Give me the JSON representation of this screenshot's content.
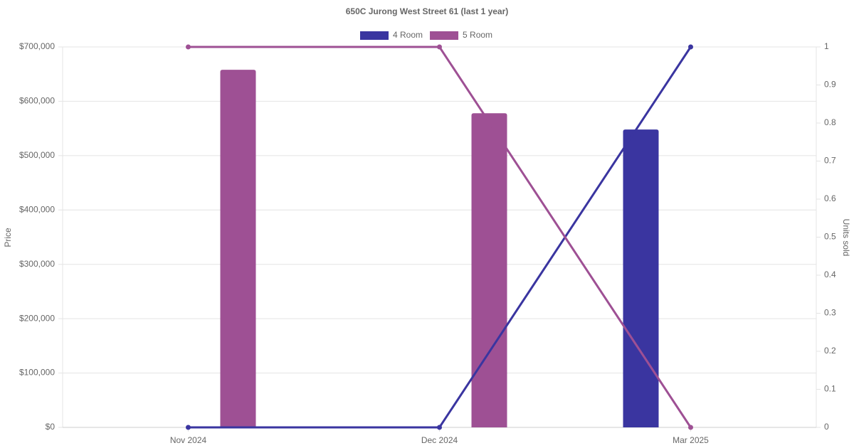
{
  "chart_data": {
    "type": "bar-line",
    "title": "650C Jurong West Street 61 (last 1 year)",
    "y_label": "Price",
    "y2_label": "Units sold",
    "categories": [
      "Nov 2024",
      "Dec 2024",
      "Mar 2025"
    ],
    "series": [
      {
        "name": "4 Room",
        "color": "#3a35a0",
        "values": [
          null,
          null,
          548000
        ],
        "units": [
          0,
          0,
          1
        ]
      },
      {
        "name": "5 Room",
        "color": "#9e5094",
        "values": [
          658000,
          578000,
          null
        ],
        "units": [
          1,
          1,
          0
        ]
      }
    ],
    "ylim": [
      0,
      700000
    ],
    "yticks": [
      {
        "value": 0,
        "label": "$0"
      },
      {
        "value": 100000,
        "label": "$100,000"
      },
      {
        "value": 200000,
        "label": "$200,000"
      },
      {
        "value": 300000,
        "label": "$300,000"
      },
      {
        "value": 400000,
        "label": "$400,000"
      },
      {
        "value": 500000,
        "label": "$500,000"
      },
      {
        "value": 600000,
        "label": "$600,000"
      },
      {
        "value": 700000,
        "label": "$700,000"
      }
    ],
    "y2lim": [
      0,
      1
    ],
    "y2ticks": [
      0,
      0.1,
      0.2,
      0.3,
      0.4,
      0.5,
      0.6,
      0.7,
      0.8,
      0.9,
      1
    ],
    "grid": true
  }
}
